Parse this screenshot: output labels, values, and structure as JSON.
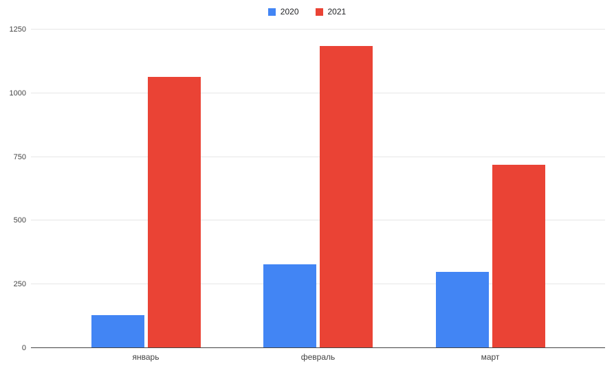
{
  "chart_data": {
    "type": "bar",
    "title": "",
    "xlabel": "",
    "ylabel": "",
    "categories": [
      "январь",
      "февраль",
      "март"
    ],
    "series": [
      {
        "name": "2020",
        "color": "#4285F4",
        "values": [
          130,
          330,
          300
        ]
      },
      {
        "name": "2021",
        "color": "#EA4335",
        "values": [
          1065,
          1185,
          720
        ]
      }
    ],
    "ylim": [
      0,
      1250
    ],
    "yticks": [
      0,
      250,
      500,
      750,
      1000,
      1250
    ],
    "grid": true,
    "legend_position": "top-center"
  },
  "colors": {
    "background": "#ffffff",
    "gridline": "#e6e6e6",
    "axis_line": "#424242",
    "tick_text": "#444444",
    "legend_text": "#202124"
  }
}
